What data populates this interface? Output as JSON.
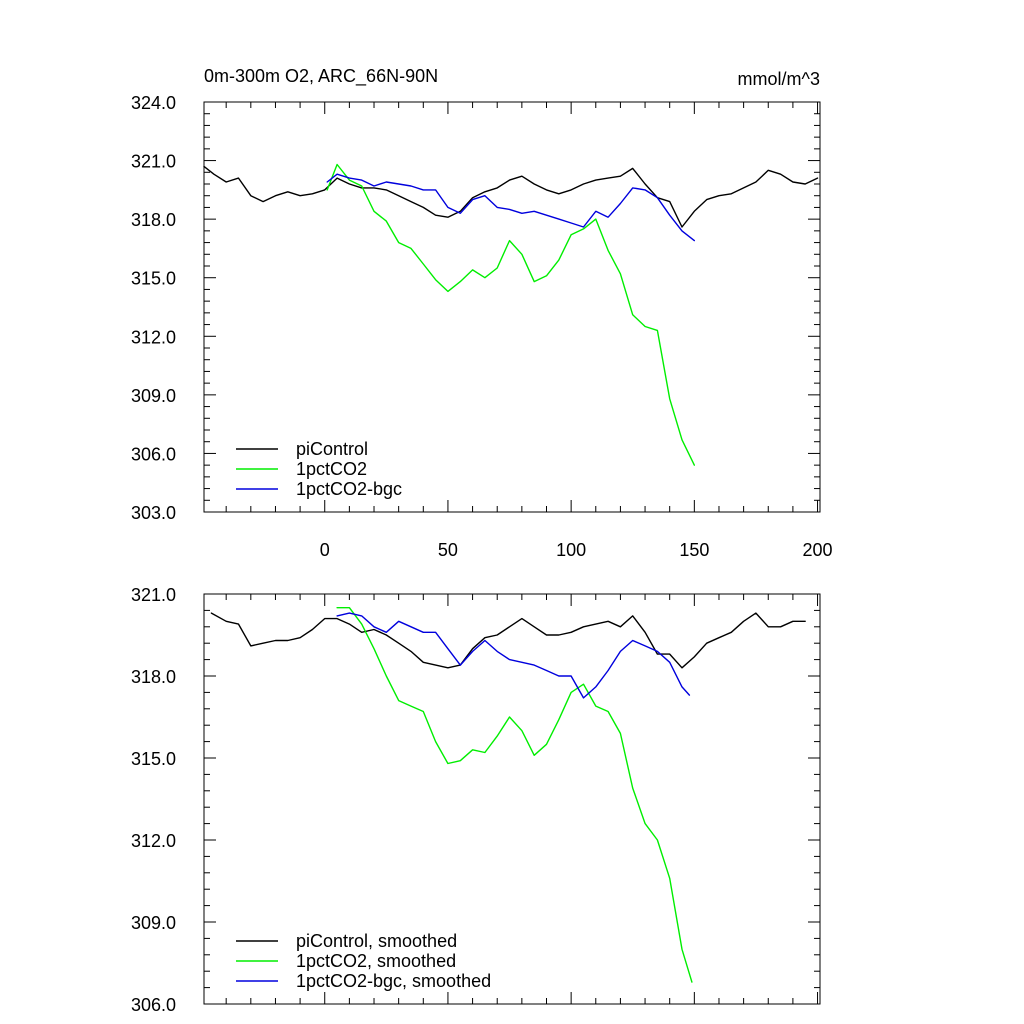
{
  "header": {
    "title": "0m-300m O2, ARC_66N-90N",
    "units": "mmol/m^3"
  },
  "colors": {
    "piControl": "#000000",
    "1pctCO2": "#00ee00",
    "1pctCO2-bgc": "#0000dd"
  },
  "chart_data": [
    {
      "type": "line",
      "title": "0m-300m O2, ARC_66N-90N",
      "units_label": "mmol/m^3",
      "xlabel": "",
      "ylabel": "",
      "xlim": [
        -49,
        201
      ],
      "ylim": [
        303,
        324
      ],
      "x_ticks": [
        0,
        50,
        100,
        150,
        200
      ],
      "x_tick_labels": [
        "0",
        "50",
        "100",
        "150",
        "200"
      ],
      "y_ticks": [
        303,
        306,
        309,
        312,
        315,
        318,
        321,
        324
      ],
      "y_tick_labels": [
        "303.0",
        "306.0",
        "309.0",
        "312.0",
        "315.0",
        "318.0",
        "321.0",
        "324.0"
      ],
      "grid": false,
      "legend_position": "bottom-left",
      "series": [
        {
          "name": "piControl",
          "color": "#000000",
          "x": [
            -49,
            -45,
            -40,
            -35,
            -30,
            -25,
            -20,
            -15,
            -10,
            -5,
            0,
            5,
            10,
            15,
            20,
            25,
            30,
            35,
            40,
            45,
            50,
            55,
            60,
            65,
            70,
            75,
            80,
            85,
            90,
            95,
            100,
            105,
            110,
            115,
            120,
            125,
            130,
            135,
            140,
            145,
            150,
            155,
            160,
            165,
            170,
            175,
            180,
            185,
            190,
            195,
            200
          ],
          "values": [
            320.7,
            320.3,
            319.9,
            320.1,
            319.2,
            318.9,
            319.2,
            319.4,
            319.2,
            319.3,
            319.5,
            320.1,
            319.8,
            319.6,
            319.6,
            319.5,
            319.2,
            318.9,
            318.6,
            318.2,
            318.1,
            318.4,
            319.1,
            319.4,
            319.6,
            320.0,
            320.2,
            319.8,
            319.5,
            319.3,
            319.5,
            319.8,
            320.0,
            320.1,
            320.2,
            320.6,
            319.8,
            319.1,
            318.9,
            317.6,
            318.4,
            319.0,
            319.2,
            319.3,
            319.6,
            319.9,
            320.5,
            320.3,
            319.9,
            319.8,
            320.1
          ]
        },
        {
          "name": "1pctCO2",
          "color": "#00ee00",
          "x": [
            1,
            5,
            10,
            15,
            20,
            25,
            30,
            35,
            40,
            45,
            50,
            55,
            60,
            65,
            70,
            75,
            80,
            85,
            90,
            95,
            100,
            105,
            110,
            115,
            120,
            125,
            130,
            135,
            140,
            145,
            150
          ],
          "values": [
            319.5,
            320.8,
            320.0,
            319.7,
            318.4,
            317.9,
            316.8,
            316.5,
            315.7,
            314.9,
            314.3,
            314.8,
            315.4,
            315.0,
            315.5,
            316.9,
            316.2,
            314.8,
            315.1,
            315.9,
            317.2,
            317.5,
            318.0,
            316.4,
            315.2,
            313.1,
            312.5,
            312.3,
            308.8,
            306.7,
            305.4
          ]
        },
        {
          "name": "1pctCO2-bgc",
          "color": "#0000dd",
          "x": [
            1,
            5,
            10,
            15,
            20,
            25,
            30,
            35,
            40,
            45,
            50,
            55,
            60,
            65,
            70,
            75,
            80,
            85,
            90,
            95,
            100,
            105,
            110,
            115,
            120,
            125,
            130,
            135,
            140,
            145,
            150
          ],
          "values": [
            319.9,
            320.3,
            320.1,
            320.0,
            319.7,
            319.9,
            319.8,
            319.7,
            319.5,
            319.5,
            318.6,
            318.3,
            319.0,
            319.2,
            318.6,
            318.5,
            318.3,
            318.4,
            318.2,
            318.0,
            317.8,
            317.6,
            318.4,
            318.1,
            318.8,
            319.6,
            319.5,
            319.1,
            318.2,
            317.4,
            316.9
          ]
        }
      ],
      "legend": [
        "piControl",
        "1pctCO2",
        "1pctCO2-bgc"
      ]
    },
    {
      "type": "line",
      "title": "",
      "xlabel": "",
      "ylabel": "",
      "xlim": [
        -49,
        201
      ],
      "ylim": [
        306,
        321
      ],
      "x_ticks": [
        0,
        50,
        100,
        150,
        200
      ],
      "x_tick_labels": [],
      "y_ticks": [
        306,
        309,
        312,
        315,
        318,
        321
      ],
      "y_tick_labels": [
        "306.0",
        "309.0",
        "312.0",
        "315.0",
        "318.0",
        "321.0"
      ],
      "grid": false,
      "legend_position": "bottom-left",
      "series": [
        {
          "name": "piControl, smoothed",
          "color": "#000000",
          "x": [
            -46,
            -40,
            -35,
            -30,
            -25,
            -20,
            -15,
            -10,
            -5,
            0,
            5,
            10,
            15,
            20,
            25,
            30,
            35,
            40,
            45,
            50,
            55,
            60,
            65,
            70,
            75,
            80,
            85,
            90,
            95,
            100,
            105,
            110,
            115,
            120,
            125,
            130,
            135,
            140,
            145,
            150,
            155,
            160,
            165,
            170,
            175,
            180,
            185,
            190,
            195
          ],
          "values": [
            320.3,
            320.0,
            319.9,
            319.1,
            319.2,
            319.3,
            319.3,
            319.4,
            319.7,
            320.1,
            320.1,
            319.9,
            319.6,
            319.7,
            319.5,
            319.2,
            318.9,
            318.5,
            318.4,
            318.3,
            318.4,
            319.0,
            319.4,
            319.5,
            319.8,
            320.1,
            319.8,
            319.5,
            319.5,
            319.6,
            319.8,
            319.9,
            320.0,
            319.8,
            320.2,
            319.6,
            318.8,
            318.8,
            318.3,
            318.7,
            319.2,
            319.4,
            319.6,
            320.0,
            320.3,
            319.8,
            319.8,
            320.0,
            320.0
          ]
        },
        {
          "name": "1pctCO2, smoothed",
          "color": "#00ee00",
          "x": [
            5,
            10,
            15,
            20,
            25,
            30,
            35,
            40,
            45,
            50,
            55,
            60,
            65,
            70,
            75,
            80,
            85,
            90,
            95,
            100,
            105,
            110,
            115,
            120,
            125,
            130,
            135,
            140,
            145,
            149
          ],
          "values": [
            320.5,
            320.5,
            319.9,
            319.0,
            318.0,
            317.1,
            316.9,
            316.7,
            315.6,
            314.8,
            314.9,
            315.3,
            315.2,
            315.8,
            316.5,
            316.0,
            315.1,
            315.5,
            316.4,
            317.4,
            317.7,
            316.9,
            316.7,
            315.9,
            313.9,
            312.6,
            312.0,
            310.6,
            308.0,
            306.8
          ]
        },
        {
          "name": "1pctCO2-bgc, smoothed",
          "color": "#0000dd",
          "x": [
            5,
            10,
            15,
            20,
            25,
            30,
            35,
            40,
            45,
            50,
            55,
            60,
            65,
            70,
            75,
            80,
            85,
            90,
            95,
            100,
            105,
            110,
            115,
            120,
            125,
            130,
            135,
            140,
            145,
            148
          ],
          "values": [
            320.2,
            320.3,
            320.2,
            319.8,
            319.6,
            320.0,
            319.8,
            319.6,
            319.6,
            319.0,
            318.4,
            318.9,
            319.3,
            318.9,
            318.6,
            318.5,
            318.4,
            318.2,
            318.0,
            318.0,
            317.2,
            317.6,
            318.2,
            318.9,
            319.3,
            319.1,
            318.9,
            318.5,
            317.6,
            317.3
          ]
        }
      ],
      "legend": [
        "piControl, smoothed",
        "1pctCO2, smoothed",
        "1pctCO2-bgc, smoothed"
      ]
    }
  ]
}
